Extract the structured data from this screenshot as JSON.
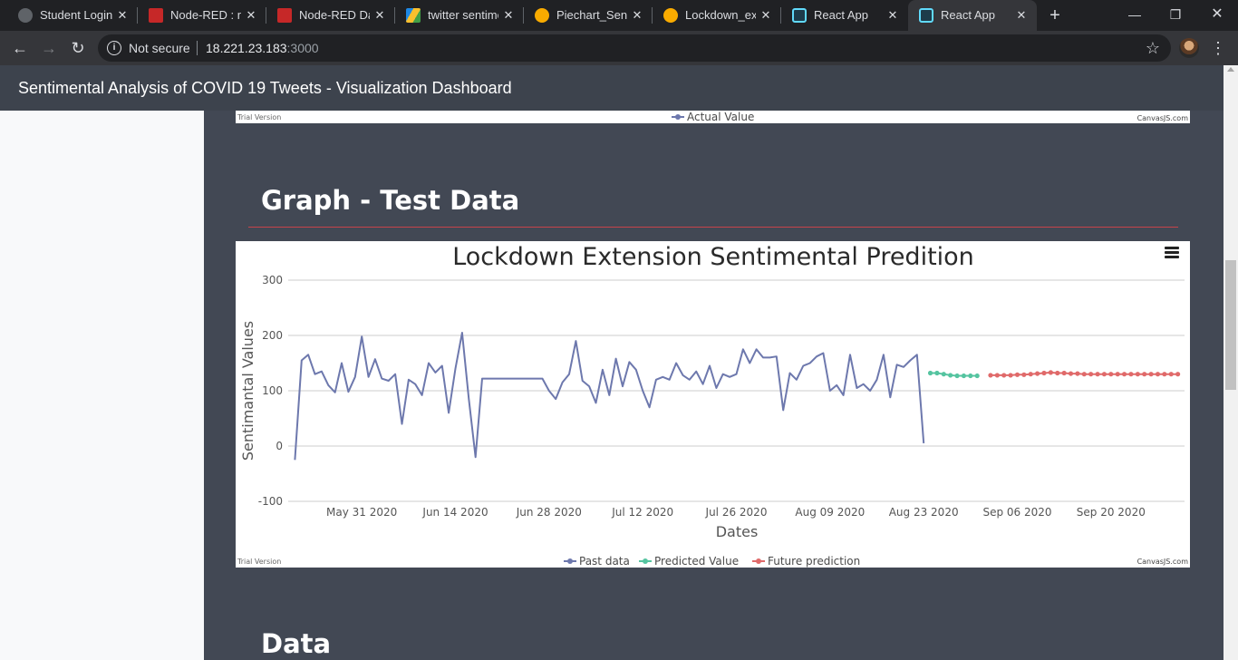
{
  "browser": {
    "tabs": [
      {
        "title": "Student Login",
        "favicon": "globe-icon",
        "color": "#5f6368"
      },
      {
        "title": "Node-RED : no",
        "favicon": "node-red-icon",
        "color": "#c62828"
      },
      {
        "title": "Node-RED Das",
        "favicon": "node-red-icon",
        "color": "#c62828"
      },
      {
        "title": "twitter sentime",
        "favicon": "google-drive-icon",
        "color": "#1e88e5"
      },
      {
        "title": "Piechart_Sentir",
        "favicon": "colab-icon",
        "color": "#f9ab00"
      },
      {
        "title": "Lockdown_exte",
        "favicon": "colab-icon",
        "color": "#f9ab00"
      },
      {
        "title": "React App",
        "favicon": "react-icon",
        "color": "#61dafb"
      },
      {
        "title": "React App",
        "favicon": "react-icon",
        "color": "#61dafb",
        "active": true
      }
    ],
    "omnibox": {
      "security_label": "Not secure",
      "host": "18.221.23.183",
      "port": ":3000"
    }
  },
  "app": {
    "title": "Sentimental Analysis of COVID 19 Tweets - Visualization Dashboard"
  },
  "chart1_partial": {
    "legend": [
      "Actual  Value"
    ],
    "trial_label": "Trial Version",
    "credit": "CanvasJS.com",
    "colors": {
      "actual": "#6d78ad"
    }
  },
  "sections": {
    "graph_title": "Graph - Test Data",
    "data_title": "Data"
  },
  "chart_data": {
    "type": "line",
    "title": "Lockdown Extension Sentimental Predition",
    "xlabel": "Dates",
    "ylabel": "Sentimantal Values",
    "ylim": [
      -100,
      300
    ],
    "yticks": [
      -100,
      0,
      100,
      200,
      300
    ],
    "xticks": [
      "May 31 2020",
      "Jun 14 2020",
      "Jun 28 2020",
      "Jul 12 2020",
      "Jul 26 2020",
      "Aug 09 2020",
      "Aug 23 2020",
      "Sep 06 2020",
      "Sep 20 2020"
    ],
    "xtick_dates": [
      "2020-05-31",
      "2020-06-14",
      "2020-06-28",
      "2020-07-12",
      "2020-07-26",
      "2020-08-09",
      "2020-08-23",
      "2020-09-06",
      "2020-09-20"
    ],
    "xlim": [
      "2020-05-20",
      "2020-10-01"
    ],
    "grid": true,
    "legend_position": "bottom",
    "trial_label": "Trial Version",
    "credit": "CanvasJS.com",
    "series": [
      {
        "name": "Past data",
        "color": "#6d78ad",
        "markers": false,
        "points": [
          [
            "2020-05-21",
            -25
          ],
          [
            "2020-05-22",
            155
          ],
          [
            "2020-05-23",
            165
          ],
          [
            "2020-05-24",
            130
          ],
          [
            "2020-05-25",
            135
          ],
          [
            "2020-05-26",
            110
          ],
          [
            "2020-05-27",
            97
          ],
          [
            "2020-05-28",
            150
          ],
          [
            "2020-05-29",
            98
          ],
          [
            "2020-05-30",
            125
          ],
          [
            "2020-05-31",
            198
          ],
          [
            "2020-06-01",
            125
          ],
          [
            "2020-06-02",
            157
          ],
          [
            "2020-06-03",
            122
          ],
          [
            "2020-06-04",
            118
          ],
          [
            "2020-06-05",
            130
          ],
          [
            "2020-06-06",
            40
          ],
          [
            "2020-06-07",
            120
          ],
          [
            "2020-06-08",
            112
          ],
          [
            "2020-06-09",
            92
          ],
          [
            "2020-06-10",
            150
          ],
          [
            "2020-06-11",
            133
          ],
          [
            "2020-06-12",
            145
          ],
          [
            "2020-06-13",
            60
          ],
          [
            "2020-06-14",
            140
          ],
          [
            "2020-06-15",
            205
          ],
          [
            "2020-06-16",
            85
          ],
          [
            "2020-06-17",
            -20
          ],
          [
            "2020-06-18",
            122
          ],
          [
            "2020-06-26",
            122
          ],
          [
            "2020-06-27",
            122
          ],
          [
            "2020-06-28",
            100
          ],
          [
            "2020-06-29",
            85
          ],
          [
            "2020-06-30",
            115
          ],
          [
            "2020-07-01",
            130
          ],
          [
            "2020-07-02",
            190
          ],
          [
            "2020-07-03",
            118
          ],
          [
            "2020-07-04",
            108
          ],
          [
            "2020-07-05",
            78
          ],
          [
            "2020-07-06",
            138
          ],
          [
            "2020-07-07",
            92
          ],
          [
            "2020-07-08",
            158
          ],
          [
            "2020-07-09",
            108
          ],
          [
            "2020-07-10",
            152
          ],
          [
            "2020-07-11",
            138
          ],
          [
            "2020-07-12",
            100
          ],
          [
            "2020-07-13",
            70
          ],
          [
            "2020-07-14",
            120
          ],
          [
            "2020-07-15",
            125
          ],
          [
            "2020-07-16",
            120
          ],
          [
            "2020-07-17",
            150
          ],
          [
            "2020-07-18",
            128
          ],
          [
            "2020-07-19",
            120
          ],
          [
            "2020-07-20",
            135
          ],
          [
            "2020-07-21",
            112
          ],
          [
            "2020-07-22",
            145
          ],
          [
            "2020-07-23",
            105
          ],
          [
            "2020-07-24",
            130
          ],
          [
            "2020-07-25",
            125
          ],
          [
            "2020-07-26",
            130
          ],
          [
            "2020-07-27",
            175
          ],
          [
            "2020-07-28",
            150
          ],
          [
            "2020-07-29",
            175
          ],
          [
            "2020-07-30",
            160
          ],
          [
            "2020-07-31",
            160
          ],
          [
            "2020-08-01",
            162
          ],
          [
            "2020-08-02",
            65
          ],
          [
            "2020-08-03",
            132
          ],
          [
            "2020-08-04",
            120
          ],
          [
            "2020-08-05",
            145
          ],
          [
            "2020-08-06",
            150
          ],
          [
            "2020-08-07",
            162
          ],
          [
            "2020-08-08",
            168
          ],
          [
            "2020-08-09",
            100
          ],
          [
            "2020-08-10",
            110
          ],
          [
            "2020-08-11",
            92
          ],
          [
            "2020-08-12",
            165
          ],
          [
            "2020-08-13",
            105
          ],
          [
            "2020-08-14",
            112
          ],
          [
            "2020-08-15",
            100
          ],
          [
            "2020-08-16",
            120
          ],
          [
            "2020-08-17",
            165
          ],
          [
            "2020-08-18",
            88
          ],
          [
            "2020-08-19",
            147
          ],
          [
            "2020-08-20",
            143
          ],
          [
            "2020-08-21",
            155
          ],
          [
            "2020-08-22",
            165
          ],
          [
            "2020-08-23",
            5
          ]
        ]
      },
      {
        "name": "Predicted Value",
        "color": "#55c4a0",
        "markers": true,
        "points": [
          [
            "2020-08-24",
            132
          ],
          [
            "2020-08-25",
            132
          ],
          [
            "2020-08-26",
            130
          ],
          [
            "2020-08-27",
            128
          ],
          [
            "2020-08-28",
            127
          ],
          [
            "2020-08-29",
            127
          ],
          [
            "2020-08-30",
            127
          ],
          [
            "2020-08-31",
            127
          ]
        ]
      },
      {
        "name": "Future prediction",
        "color": "#e06a6a",
        "markers": true,
        "points": [
          [
            "2020-09-02",
            128
          ],
          [
            "2020-09-03",
            128
          ],
          [
            "2020-09-04",
            128
          ],
          [
            "2020-09-05",
            128
          ],
          [
            "2020-09-06",
            129
          ],
          [
            "2020-09-07",
            129
          ],
          [
            "2020-09-08",
            130
          ],
          [
            "2020-09-09",
            131
          ],
          [
            "2020-09-10",
            132
          ],
          [
            "2020-09-11",
            133
          ],
          [
            "2020-09-12",
            132
          ],
          [
            "2020-09-13",
            132
          ],
          [
            "2020-09-14",
            131
          ],
          [
            "2020-09-15",
            131
          ],
          [
            "2020-09-16",
            130
          ],
          [
            "2020-09-17",
            130
          ],
          [
            "2020-09-18",
            130
          ],
          [
            "2020-09-19",
            130
          ],
          [
            "2020-09-20",
            130
          ],
          [
            "2020-09-21",
            130
          ],
          [
            "2020-09-22",
            130
          ],
          [
            "2020-09-23",
            130
          ],
          [
            "2020-09-24",
            130
          ],
          [
            "2020-09-25",
            130
          ],
          [
            "2020-09-26",
            130
          ],
          [
            "2020-09-27",
            130
          ],
          [
            "2020-09-28",
            130
          ],
          [
            "2020-09-29",
            130
          ],
          [
            "2020-09-30",
            130
          ]
        ]
      }
    ]
  }
}
